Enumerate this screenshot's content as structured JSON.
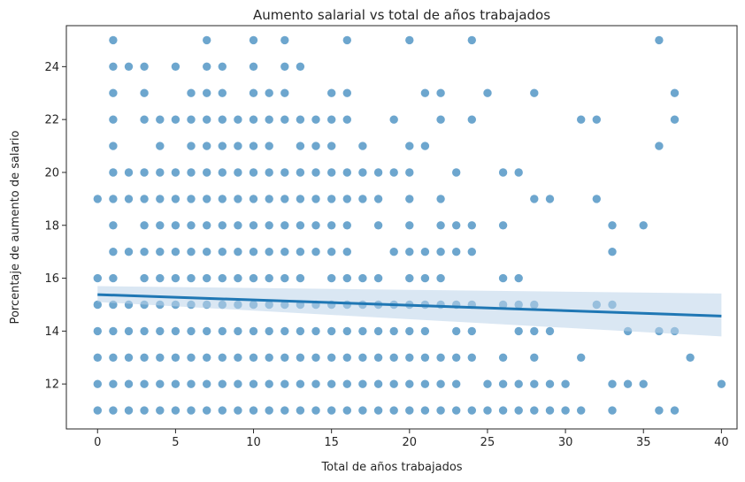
{
  "chart_data": {
    "type": "scatter",
    "title": "Aumento salarial vs total de años trabajados",
    "xlabel": "Total de años trabajados",
    "ylabel": "Porcentaje de aumento de salario",
    "xlim": [
      -2,
      41
    ],
    "ylim": [
      10.3,
      25.55
    ],
    "xticks": [
      0,
      5,
      10,
      15,
      20,
      25,
      30,
      35,
      40
    ],
    "yticks": [
      12,
      14,
      16,
      18,
      20,
      22,
      24
    ],
    "grid": false,
    "point_color": "#1f77b4",
    "point_alpha": 0.65,
    "points_by_y": {
      "11": [
        0,
        1,
        2,
        3,
        4,
        5,
        6,
        7,
        8,
        9,
        10,
        11,
        12,
        13,
        14,
        15,
        16,
        17,
        18,
        19,
        20,
        21,
        22,
        23,
        24,
        25,
        26,
        27,
        28,
        29,
        30,
        31,
        33,
        36,
        37
      ],
      "12": [
        0,
        1,
        2,
        3,
        4,
        5,
        6,
        7,
        8,
        9,
        10,
        11,
        12,
        13,
        14,
        15,
        16,
        17,
        18,
        19,
        20,
        21,
        22,
        23,
        25,
        26,
        27,
        28,
        29,
        30,
        33,
        34,
        35,
        40
      ],
      "13": [
        0,
        1,
        2,
        3,
        4,
        5,
        6,
        7,
        8,
        9,
        10,
        11,
        12,
        13,
        14,
        15,
        16,
        17,
        18,
        19,
        20,
        21,
        22,
        23,
        24,
        26,
        28,
        31,
        38
      ],
      "14": [
        0,
        1,
        2,
        3,
        4,
        5,
        6,
        7,
        8,
        9,
        10,
        11,
        12,
        13,
        14,
        15,
        16,
        17,
        18,
        19,
        20,
        21,
        23,
        24,
        27,
        28,
        29,
        34,
        36,
        37
      ],
      "15": [
        0,
        1,
        2,
        3,
        4,
        5,
        6,
        7,
        8,
        9,
        10,
        11,
        12,
        13,
        14,
        15,
        16,
        17,
        18,
        19,
        20,
        21,
        22,
        23,
        24,
        26,
        27,
        28,
        32,
        33
      ],
      "16": [
        0,
        1,
        3,
        4,
        5,
        6,
        7,
        8,
        9,
        10,
        11,
        12,
        13,
        15,
        16,
        17,
        18,
        20,
        21,
        22,
        26,
        27
      ],
      "17": [
        1,
        2,
        3,
        4,
        5,
        6,
        7,
        8,
        9,
        10,
        11,
        12,
        13,
        14,
        15,
        16,
        19,
        20,
        21,
        22,
        23,
        24,
        33
      ],
      "18": [
        1,
        3,
        4,
        5,
        6,
        7,
        8,
        9,
        10,
        11,
        12,
        13,
        14,
        15,
        16,
        18,
        20,
        22,
        23,
        24,
        26,
        33,
        35
      ],
      "19": [
        0,
        1,
        2,
        3,
        4,
        5,
        6,
        7,
        8,
        9,
        10,
        11,
        12,
        13,
        14,
        15,
        16,
        17,
        18,
        20,
        22,
        28,
        29,
        32
      ],
      "20": [
        1,
        2,
        3,
        4,
        5,
        6,
        7,
        8,
        9,
        10,
        11,
        12,
        13,
        14,
        15,
        16,
        17,
        18,
        19,
        20,
        23,
        26,
        27
      ],
      "21": [
        1,
        4,
        6,
        7,
        8,
        9,
        10,
        11,
        13,
        14,
        15,
        17,
        20,
        21,
        36
      ],
      "22": [
        1,
        3,
        4,
        5,
        6,
        7,
        8,
        9,
        10,
        11,
        12,
        13,
        14,
        15,
        16,
        19,
        22,
        24,
        31,
        32,
        37
      ],
      "23": [
        1,
        3,
        6,
        7,
        8,
        10,
        11,
        12,
        15,
        16,
        21,
        22,
        25,
        28,
        37
      ],
      "24": [
        1,
        2,
        3,
        5,
        7,
        8,
        10,
        12,
        13
      ],
      "25": [
        1,
        7,
        10,
        12,
        16,
        20,
        24,
        36
      ]
    },
    "regression": {
      "x": [
        0,
        40
      ],
      "y": [
        15.38,
        14.57
      ],
      "ci_lower": [
        15.1,
        13.8
      ],
      "ci_upper": [
        15.7,
        15.42
      ],
      "line_color": "#1f77b4",
      "band_color": "#bcd4ea"
    }
  }
}
